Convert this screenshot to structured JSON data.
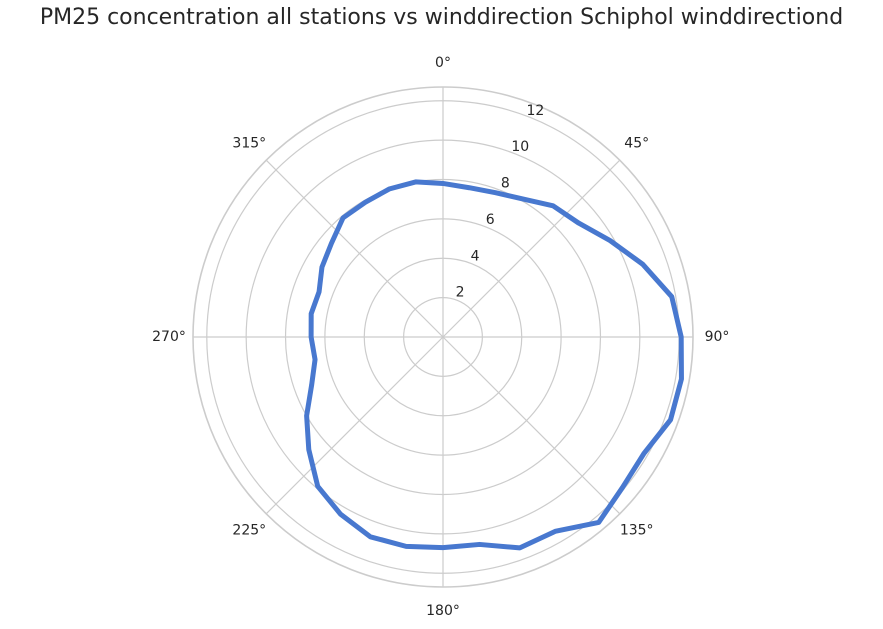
{
  "chart_data": {
    "type": "polar-line",
    "title": "PM25 concentration all stations vs winddirection Schiphol winddirectiond",
    "angle_tick_labels": [
      "0°",
      "45°",
      "90°",
      "135°",
      "180°",
      "225°",
      "270°",
      "315°"
    ],
    "angle_tick_values": [
      0,
      45,
      90,
      135,
      180,
      225,
      270,
      315
    ],
    "radial_tick_labels": [
      "2",
      "4",
      "6",
      "8",
      "10",
      "12"
    ],
    "radial_tick_values": [
      2,
      4,
      6,
      8,
      10,
      12
    ],
    "rlim": [
      0,
      12.7
    ],
    "theta_zero_location": "N",
    "theta_direction": "clockwise",
    "grid": true,
    "series": [
      {
        "color": "#4878cf",
        "theta_deg": [
          0,
          10,
          20,
          30,
          40,
          50,
          60,
          70,
          80,
          90,
          100,
          110,
          120,
          130,
          140,
          150,
          160,
          170,
          180,
          190,
          200,
          210,
          220,
          230,
          240,
          250,
          260,
          270,
          280,
          290,
          300,
          310,
          320,
          330,
          340,
          350
        ],
        "values": [
          7.8,
          7.7,
          7.8,
          8.1,
          8.7,
          9.0,
          9.8,
          10.8,
          11.8,
          12.1,
          12.3,
          12.3,
          11.8,
          11.9,
          12.3,
          11.4,
          11.4,
          10.7,
          10.7,
          10.8,
          10.8,
          10.4,
          9.9,
          8.9,
          8.0,
          7.1,
          6.6,
          6.7,
          6.8,
          6.7,
          7.1,
          7.4,
          7.9,
          7.9,
          8.0,
          8.0
        ]
      }
    ]
  }
}
